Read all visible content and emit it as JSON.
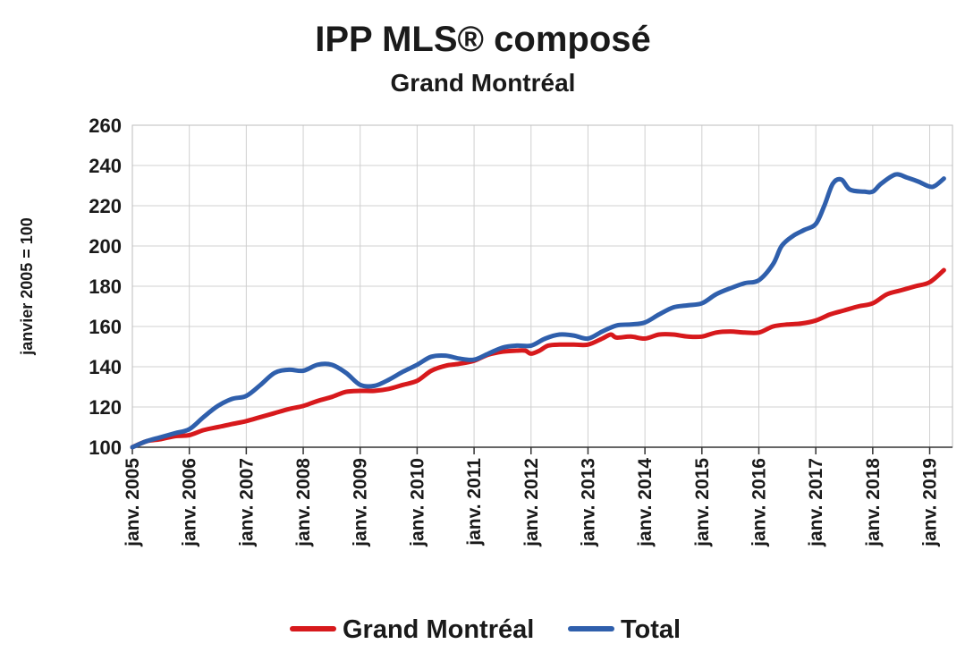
{
  "chart_data": {
    "type": "line",
    "title": "IPP MLS® composé",
    "subtitle": "Grand Montréal",
    "ylabel": "janvier 2005 = 100",
    "xlabel": "",
    "ylim": [
      100,
      260
    ],
    "yticks": [
      100,
      120,
      140,
      160,
      180,
      200,
      220,
      240,
      260
    ],
    "xlim": [
      2005.0,
      2019.4
    ],
    "xticks": [
      {
        "label": "janv. 2005",
        "value": 2005
      },
      {
        "label": "janv. 2006",
        "value": 2006
      },
      {
        "label": "janv. 2007",
        "value": 2007
      },
      {
        "label": "janv. 2008",
        "value": 2008
      },
      {
        "label": "janv. 2009",
        "value": 2009
      },
      {
        "label": "janv. 2010",
        "value": 2010
      },
      {
        "label": "janv. 2011",
        "value": 2011
      },
      {
        "label": "janv. 2012",
        "value": 2012
      },
      {
        "label": "janv. 2013",
        "value": 2013
      },
      {
        "label": "janv. 2014",
        "value": 2014
      },
      {
        "label": "janv. 2015",
        "value": 2015
      },
      {
        "label": "janv. 2016",
        "value": 2016
      },
      {
        "label": "janv. 2017",
        "value": 2017
      },
      {
        "label": "janv. 2018",
        "value": 2018
      },
      {
        "label": "janv. 2019",
        "value": 2019
      }
    ],
    "grid": true,
    "legend_position": "bottom",
    "series": [
      {
        "name": "Grand Montréal",
        "color": "#d7191c",
        "points": [
          [
            2005.0,
            100
          ],
          [
            2005.25,
            103
          ],
          [
            2005.5,
            104
          ],
          [
            2005.75,
            105.5
          ],
          [
            2006.0,
            106
          ],
          [
            2006.25,
            108.5
          ],
          [
            2006.5,
            110
          ],
          [
            2006.75,
            111.5
          ],
          [
            2007.0,
            113
          ],
          [
            2007.25,
            115
          ],
          [
            2007.5,
            117
          ],
          [
            2007.75,
            119
          ],
          [
            2008.0,
            120.5
          ],
          [
            2008.25,
            123
          ],
          [
            2008.5,
            125
          ],
          [
            2008.75,
            127.5
          ],
          [
            2009.0,
            128
          ],
          [
            2009.25,
            128
          ],
          [
            2009.5,
            129
          ],
          [
            2009.75,
            131
          ],
          [
            2010.0,
            133
          ],
          [
            2010.25,
            138
          ],
          [
            2010.5,
            140.5
          ],
          [
            2010.75,
            141.5
          ],
          [
            2011.0,
            143
          ],
          [
            2011.25,
            146
          ],
          [
            2011.5,
            147.5
          ],
          [
            2011.75,
            148
          ],
          [
            2011.9,
            148
          ],
          [
            2012.0,
            146.5
          ],
          [
            2012.15,
            148
          ],
          [
            2012.3,
            150.5
          ],
          [
            2012.5,
            151
          ],
          [
            2012.75,
            151
          ],
          [
            2013.0,
            151
          ],
          [
            2013.25,
            154
          ],
          [
            2013.4,
            156
          ],
          [
            2013.5,
            154.5
          ],
          [
            2013.75,
            155
          ],
          [
            2014.0,
            154
          ],
          [
            2014.25,
            156
          ],
          [
            2014.5,
            156
          ],
          [
            2014.75,
            155
          ],
          [
            2015.0,
            155
          ],
          [
            2015.25,
            157
          ],
          [
            2015.5,
            157.5
          ],
          [
            2015.75,
            157
          ],
          [
            2016.0,
            157
          ],
          [
            2016.25,
            160
          ],
          [
            2016.5,
            161
          ],
          [
            2016.75,
            161.5
          ],
          [
            2017.0,
            163
          ],
          [
            2017.25,
            166
          ],
          [
            2017.5,
            168
          ],
          [
            2017.75,
            170
          ],
          [
            2018.0,
            171.5
          ],
          [
            2018.25,
            176
          ],
          [
            2018.5,
            178
          ],
          [
            2018.75,
            180
          ],
          [
            2019.0,
            182
          ],
          [
            2019.25,
            188
          ]
        ]
      },
      {
        "name": "Total",
        "color": "#2f5fac",
        "points": [
          [
            2005.0,
            100
          ],
          [
            2005.25,
            103
          ],
          [
            2005.5,
            105
          ],
          [
            2005.75,
            107
          ],
          [
            2006.0,
            109
          ],
          [
            2006.25,
            115
          ],
          [
            2006.5,
            120.5
          ],
          [
            2006.75,
            124
          ],
          [
            2007.0,
            125.5
          ],
          [
            2007.25,
            131
          ],
          [
            2007.5,
            137
          ],
          [
            2007.75,
            138.5
          ],
          [
            2008.0,
            138
          ],
          [
            2008.25,
            141
          ],
          [
            2008.5,
            141
          ],
          [
            2008.75,
            137
          ],
          [
            2009.0,
            131
          ],
          [
            2009.25,
            130.5
          ],
          [
            2009.5,
            133.5
          ],
          [
            2009.75,
            137.5
          ],
          [
            2010.0,
            141
          ],
          [
            2010.25,
            145
          ],
          [
            2010.5,
            145.5
          ],
          [
            2010.75,
            144
          ],
          [
            2011.0,
            143.5
          ],
          [
            2011.25,
            146.5
          ],
          [
            2011.5,
            149.5
          ],
          [
            2011.75,
            150.5
          ],
          [
            2012.0,
            150.5
          ],
          [
            2012.25,
            154
          ],
          [
            2012.5,
            156
          ],
          [
            2012.75,
            155.5
          ],
          [
            2013.0,
            154
          ],
          [
            2013.25,
            157.5
          ],
          [
            2013.5,
            160.5
          ],
          [
            2013.75,
            161
          ],
          [
            2014.0,
            162
          ],
          [
            2014.25,
            166
          ],
          [
            2014.5,
            169.5
          ],
          [
            2014.75,
            170.5
          ],
          [
            2015.0,
            171.5
          ],
          [
            2015.25,
            176
          ],
          [
            2015.5,
            179
          ],
          [
            2015.75,
            181.5
          ],
          [
            2016.0,
            183
          ],
          [
            2016.25,
            191
          ],
          [
            2016.4,
            200
          ],
          [
            2016.6,
            205
          ],
          [
            2016.8,
            208
          ],
          [
            2017.0,
            211
          ],
          [
            2017.15,
            220
          ],
          [
            2017.3,
            231
          ],
          [
            2017.45,
            233
          ],
          [
            2017.6,
            228
          ],
          [
            2017.85,
            227
          ],
          [
            2018.0,
            227
          ],
          [
            2018.15,
            231
          ],
          [
            2018.4,
            235.5
          ],
          [
            2018.6,
            234
          ],
          [
            2018.8,
            232
          ],
          [
            2019.0,
            229.5
          ],
          [
            2019.1,
            230
          ],
          [
            2019.25,
            233.5
          ]
        ]
      }
    ]
  }
}
